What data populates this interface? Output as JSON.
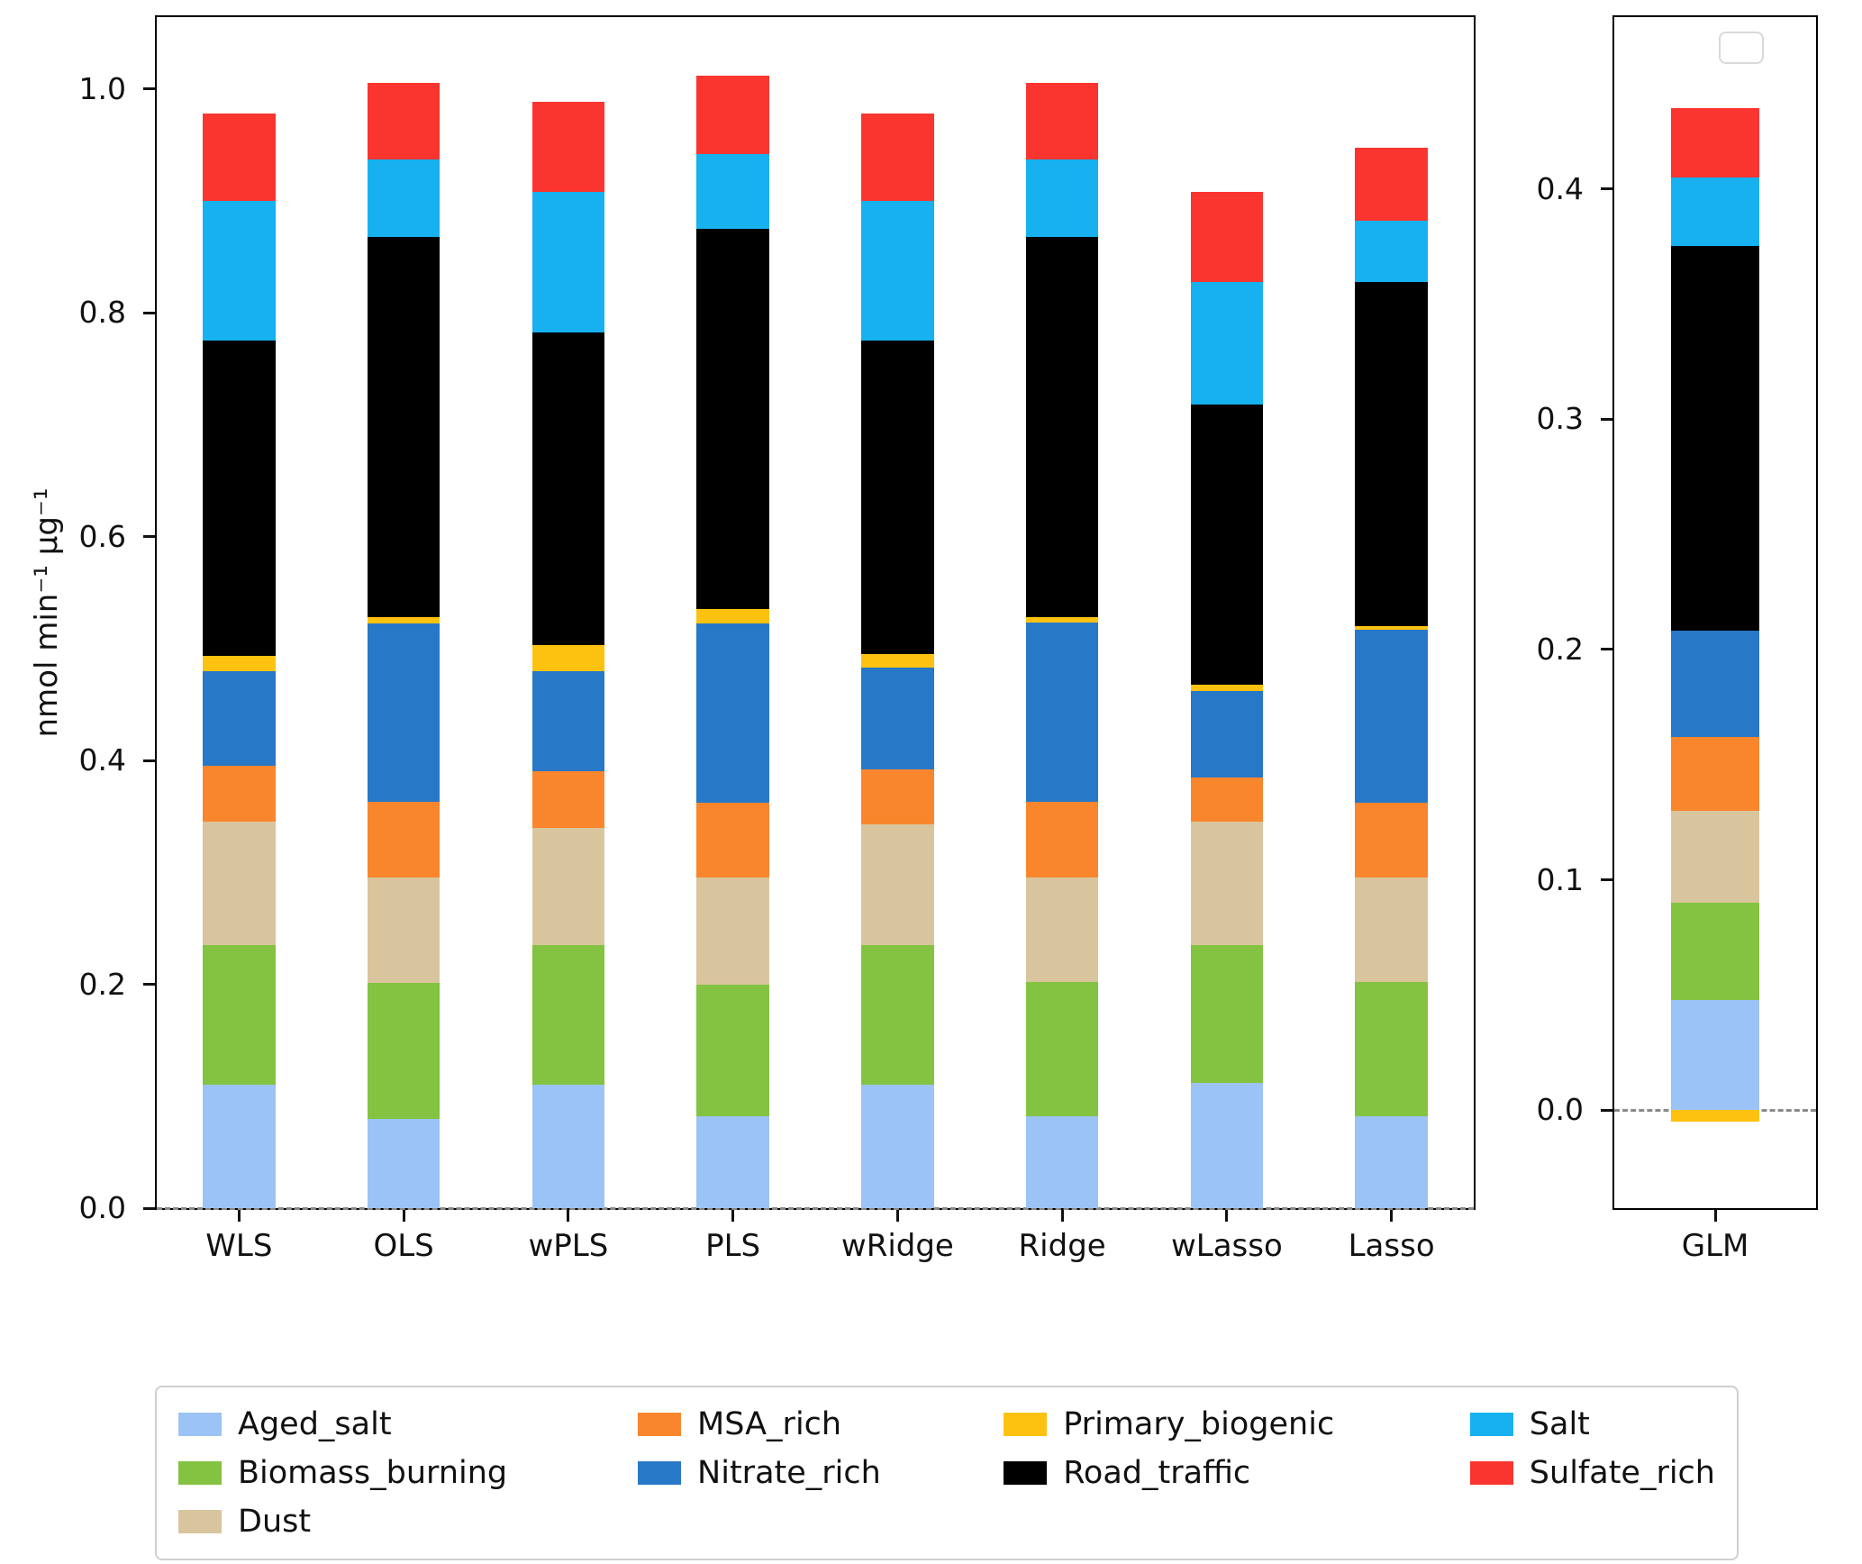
{
  "chart_data": {
    "type": "bar",
    "stacked": true,
    "title": "",
    "ylabel": "nmol min⁻¹ µg⁻¹",
    "stack_order": [
      "Aged_salt",
      "Biomass_burning",
      "Dust",
      "MSA_rich",
      "Nitrate_rich",
      "Primary_biogenic",
      "Road_traffic",
      "Salt",
      "Sulfate_rich"
    ],
    "colors": {
      "Aged_salt": "#9cc3f5",
      "Biomass_burning": "#83c341",
      "Dust": "#d9c59d",
      "MSA_rich": "#f9862d",
      "Nitrate_rich": "#2878c8",
      "Primary_biogenic": "#fdc20f",
      "Road_traffic": "#000000",
      "Salt": "#17b1f0",
      "Sulfate_rich": "#fa352f"
    },
    "legend_columns": [
      [
        "Aged_salt",
        "Biomass_burning",
        "Dust"
      ],
      [
        "MSA_rich",
        "Nitrate_rich"
      ],
      [
        "Primary_biogenic",
        "Road_traffic"
      ],
      [
        "Salt",
        "Sulfate_rich"
      ]
    ],
    "panels": [
      {
        "name": "regression-methods",
        "categories": [
          "WLS",
          "OLS",
          "wPLS",
          "PLS",
          "wRidge",
          "Ridge",
          "wLasso",
          "Lasso"
        ],
        "yticks": [
          0.0,
          0.2,
          0.4,
          0.6,
          0.8,
          1.0
        ],
        "ylim": [
          0,
          1.064
        ],
        "zero_dash": true,
        "empty_legend": false,
        "values": {
          "Aged_salt": [
            0.11,
            0.08,
            0.11,
            0.082,
            0.11,
            0.082,
            0.112,
            0.082
          ],
          "Biomass_burning": [
            0.125,
            0.121,
            0.125,
            0.118,
            0.125,
            0.12,
            0.123,
            0.12
          ],
          "Dust": [
            0.11,
            0.094,
            0.105,
            0.095,
            0.108,
            0.093,
            0.11,
            0.093
          ],
          "MSA_rich": [
            0.05,
            0.068,
            0.05,
            0.067,
            0.049,
            0.068,
            0.04,
            0.067
          ],
          "Nitrate_rich": [
            0.085,
            0.159,
            0.09,
            0.16,
            0.091,
            0.16,
            0.077,
            0.155
          ],
          "Primary_biogenic": [
            0.013,
            0.006,
            0.023,
            0.013,
            0.012,
            0.005,
            0.006,
            0.003
          ],
          "Road_traffic": [
            0.282,
            0.34,
            0.279,
            0.34,
            0.28,
            0.34,
            0.25,
            0.307
          ],
          "Salt": [
            0.125,
            0.069,
            0.126,
            0.067,
            0.125,
            0.069,
            0.109,
            0.055
          ],
          "Sulfate_rich": [
            0.078,
            0.068,
            0.08,
            0.07,
            0.078,
            0.068,
            0.081,
            0.065
          ]
        }
      },
      {
        "name": "glm",
        "categories": [
          "GLM"
        ],
        "yticks": [
          0.0,
          0.1,
          0.2,
          0.3,
          0.4
        ],
        "ylim": [
          -0.0425,
          0.4745
        ],
        "zero_dash": true,
        "empty_legend": true,
        "values": {
          "Aged_salt": [
            0.048
          ],
          "Biomass_burning": [
            0.042
          ],
          "Dust": [
            0.04
          ],
          "MSA_rich": [
            0.032
          ],
          "Nitrate_rich": [
            0.046
          ],
          "Primary_biogenic": [
            -0.005
          ],
          "Road_traffic": [
            0.167
          ],
          "Salt": [
            0.03
          ],
          "Sulfate_rich": [
            0.03
          ]
        }
      }
    ]
  }
}
